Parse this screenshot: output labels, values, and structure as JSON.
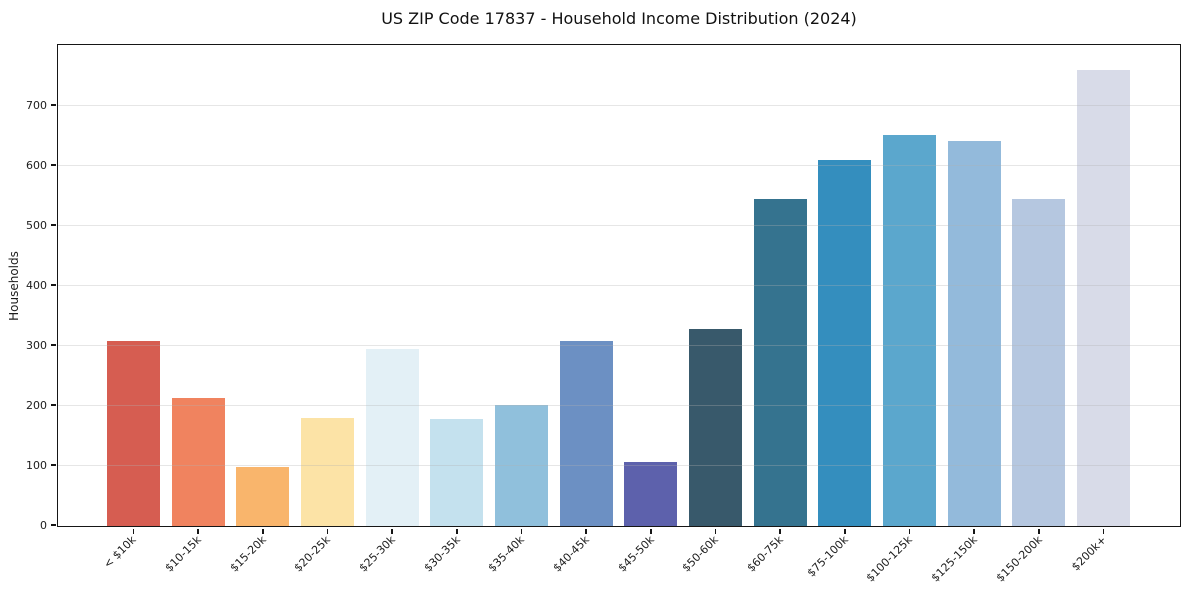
{
  "chart_data": {
    "type": "bar",
    "title": "US ZIP Code 17837 - Household Income Distribution (2024)",
    "xlabel": "",
    "ylabel": "Households",
    "categories": [
      "< $10k",
      "$10-15k",
      "$15-20k",
      "$20-25k",
      "$25-30k",
      "$30-35k",
      "$35-40k",
      "$40-45k",
      "$45-50k",
      "$50-60k",
      "$60-75k",
      "$75-100k",
      "$100-125k",
      "$125-150k",
      "$150-200k",
      "$200k+"
    ],
    "values": [
      309,
      213,
      99,
      180,
      295,
      178,
      201,
      309,
      107,
      328,
      545,
      610,
      651,
      642,
      545,
      760
    ],
    "bar_colors": [
      "#d65d51",
      "#f0835f",
      "#f9b56c",
      "#fce3a6",
      "#e3f0f6",
      "#c4e1ee",
      "#90c0dc",
      "#6c90c3",
      "#5d61ac",
      "#38596b",
      "#35738f",
      "#348ebe",
      "#5ba7cd",
      "#93badb",
      "#b5c7e0",
      "#d8dbe8"
    ],
    "ylim": [
      0,
      800
    ],
    "yticks": [
      0,
      100,
      200,
      300,
      400,
      500,
      600,
      700
    ],
    "grid": true,
    "grid_color": "rgba(176,176,176,0.32)",
    "legend_position": "none",
    "spine_color": "#161616",
    "text_color": "#1c1c1c",
    "background_color": "#ffffff"
  }
}
